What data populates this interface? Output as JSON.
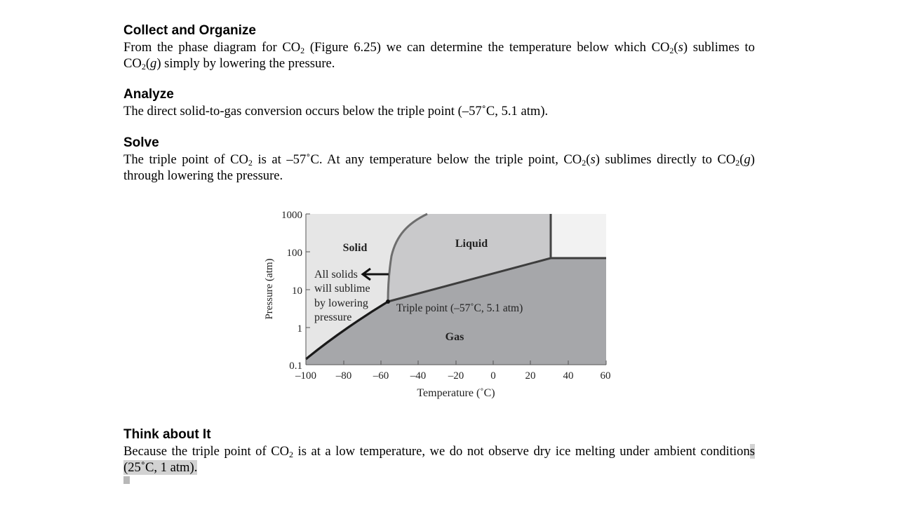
{
  "sections": {
    "collect": {
      "heading": "Collect and Organize",
      "p1": "From the phase diagram for CO",
      "sub1": "2",
      "p2": " (Figure 6.25) we can determine the temperature below which CO",
      "sub2": "2",
      "p3": "(",
      "i1": "s",
      "p4": ") sublimes to CO",
      "sub3": "2",
      "p5": "(",
      "i2": "g",
      "p6": ") simply by lowering the pressure."
    },
    "analyze": {
      "heading": "Analyze",
      "p1": "The direct solid-to-gas conversion occurs below the triple point (–57˚C, 5.1 atm)."
    },
    "solve": {
      "heading": "Solve",
      "p1": "The triple point of CO",
      "sub1": "2",
      "p2": " is at –57˚C. At any temperature below the triple point, CO",
      "sub2": "2",
      "p3": "(",
      "i1": "s",
      "p4": ") sublimes directly to CO",
      "sub3": "2",
      "p5": "(",
      "i2": "g",
      "p6": ") through lowering the pressure."
    },
    "think": {
      "heading": "Think about It",
      "p1": "Because the triple point of CO",
      "sub1": "2",
      "p2": " is at a low temperature, we do not observe dry ice melting under ambient condition",
      "p3": "s (25˚C, 1 atm). "
    }
  },
  "figure": {
    "y_ticks": [
      "1000",
      "100",
      "10",
      "1",
      "0.1"
    ],
    "x_ticks": [
      "–100",
      "–80",
      "–60",
      "–40",
      "–20",
      "0",
      "20",
      "40",
      "60"
    ],
    "ylabel": "Pressure (atm)",
    "xlabel": "Temperature (˚C)",
    "region_solid": "Solid",
    "region_liquid": "Liquid",
    "region_gas": "Gas",
    "note_line1": "All solids",
    "note_line2": "will sublime",
    "note_line3": "by lowering",
    "note_line4": "pressure",
    "triple_label": "Triple point (–57˚C, 5.1 atm)",
    "colors": {
      "solid": "#e6e6e6",
      "liquid": "#c9c9cb",
      "gas": "#a6a7aa",
      "supercritical": "#f2f2f2",
      "curve": "#1a1a1a",
      "melt_curve": "#6e6e6e"
    }
  }
}
